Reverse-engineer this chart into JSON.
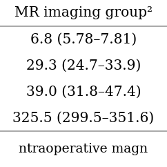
{
  "header": "MR imaging group²",
  "rows": [
    "6.8 (5.78–7.81)",
    "29.3 (24.7–33.9)",
    "39.0 (31.8–47.4)",
    "325.5 (299.5–351.6)"
  ],
  "footer": "ntraoperative magn",
  "background_color": "#ffffff",
  "text_color": "#000000",
  "header_fontsize": 14.5,
  "row_fontsize": 14.5,
  "footer_fontsize": 13.5,
  "line_color": "#999999",
  "line_width": 1.2
}
